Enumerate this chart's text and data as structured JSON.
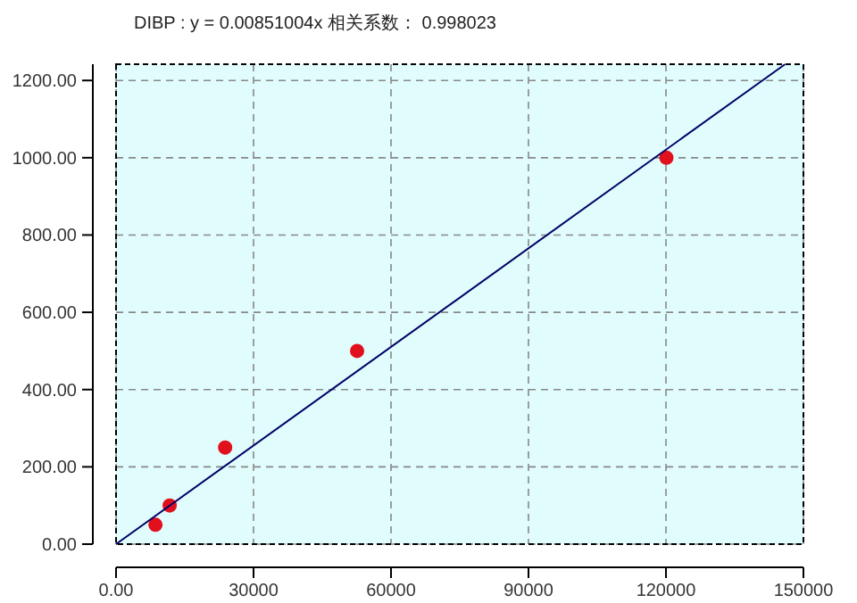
{
  "chart_data": {
    "type": "scatter",
    "title": "DIBP : y = 0.00851004x 相关系数： 0.998023",
    "series": [
      {
        "color": "#e0101c",
        "marker": "circle",
        "x": [
          8600,
          11700,
          23800,
          52600,
          120100
        ],
        "values": [
          50,
          100,
          250,
          500,
          1000
        ]
      },
      {
        "type": "line",
        "color": "#000066",
        "marker": "none",
        "line_style": "solid",
        "x": [
          0,
          146000
        ],
        "values": [
          0,
          1242
        ]
      }
    ],
    "xlim": [
      0,
      150000
    ],
    "ylim": [
      0,
      1242
    ],
    "xticks": [
      {
        "value": 0,
        "label": "0.00"
      },
      30000,
      60000,
      90000,
      120000,
      150000
    ],
    "yticks": [
      {
        "value": 0,
        "label": "0.00"
      },
      {
        "value": 200,
        "label": "200.00"
      },
      {
        "value": 400,
        "label": "400.00"
      },
      {
        "value": 600,
        "label": "600.00"
      },
      {
        "value": 800,
        "label": "800.00"
      },
      {
        "value": 1000,
        "label": "1000.00"
      },
      {
        "value": 1200,
        "label": "1200.00"
      }
    ],
    "grid": true
  }
}
